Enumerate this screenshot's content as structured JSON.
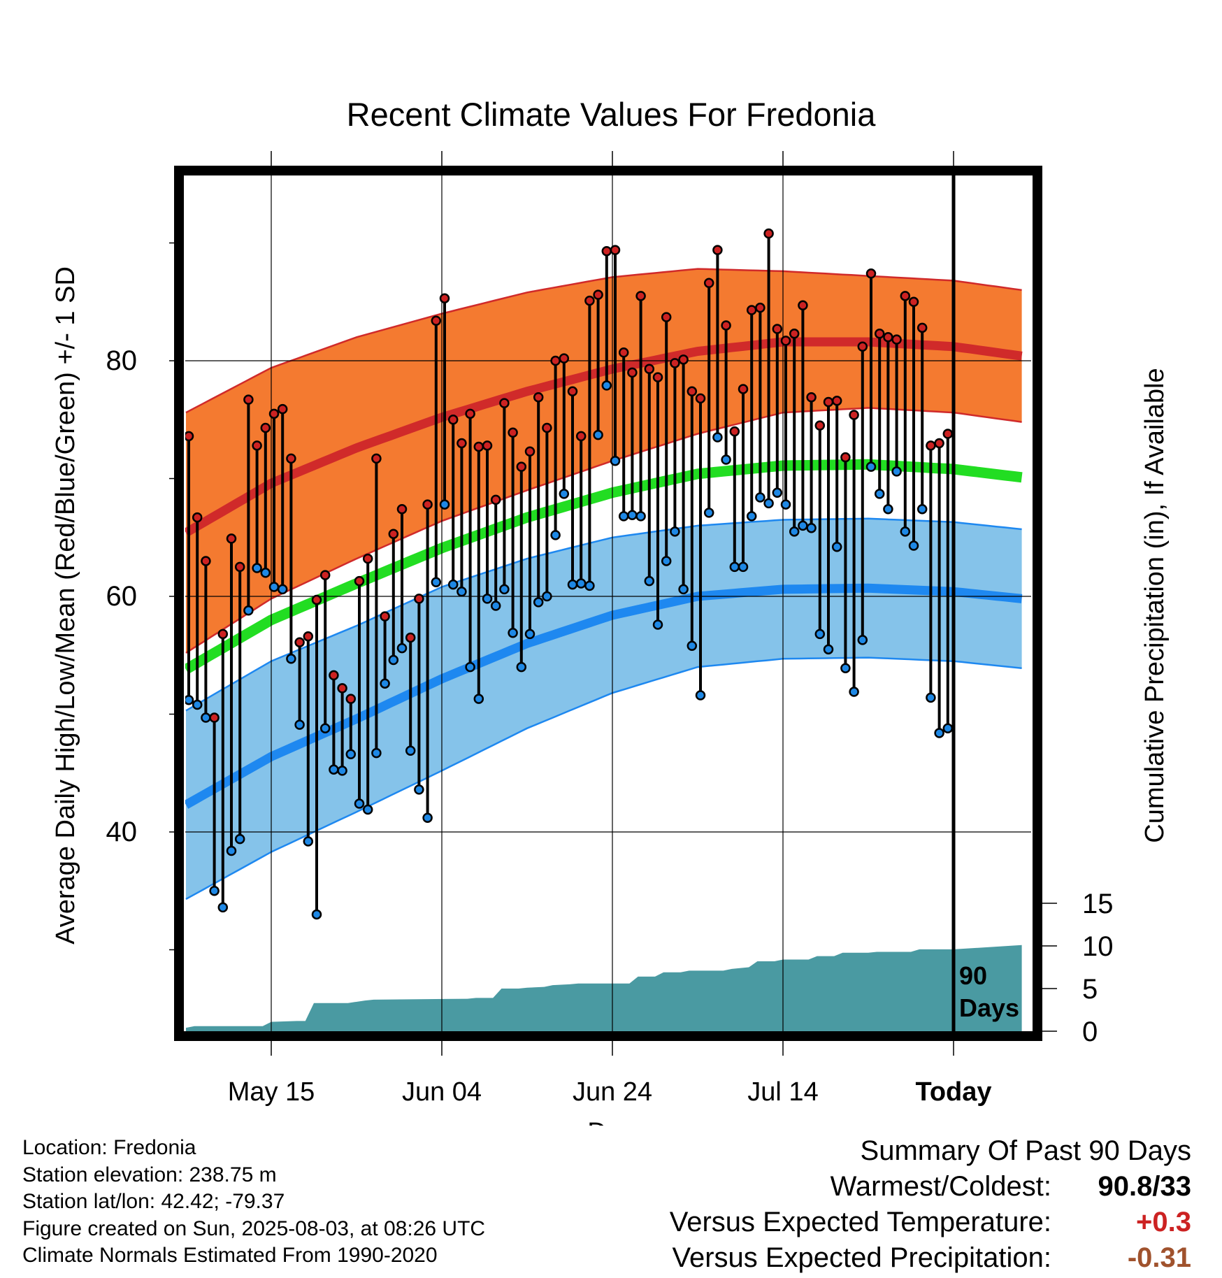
{
  "chart_data": {
    "type": "line",
    "title": "Recent Climate Values For Fredonia",
    "xlabel": "Day",
    "ylabel": "Average Daily High/Low/Mean (Red/Blue/Green) +/- 1 SD",
    "y2label": "Cumulative Precipitation (in), If Available",
    "ylim": [
      23,
      95
    ],
    "y2lim": [
      0,
      28
    ],
    "x_range_days": [
      -90,
      8
    ],
    "x_ticks": [
      {
        "day": -80,
        "label": "May 15"
      },
      {
        "day": -60,
        "label": "Jun 04"
      },
      {
        "day": -40,
        "label": "Jun 24"
      },
      {
        "day": -20,
        "label": "Jul 14"
      },
      {
        "day": 0,
        "label": "Today"
      }
    ],
    "y_ticks": [
      {
        "value": 40,
        "label": "40"
      },
      {
        "value": 60,
        "label": "60"
      },
      {
        "value": 80,
        "label": "80"
      }
    ],
    "y_minor_ticks": [
      30,
      50,
      70,
      90
    ],
    "y2_ticks": [
      {
        "value": 0,
        "label": "0"
      },
      {
        "value": 5,
        "label": "5"
      },
      {
        "value": 10,
        "label": "10"
      },
      {
        "value": 15,
        "label": "15"
      }
    ],
    "today_label": [
      "90",
      "Days"
    ],
    "normal_high": {
      "days": [
        -90,
        -80,
        -70,
        -60,
        -50,
        -40,
        -30,
        -20,
        -10,
        0,
        8
      ],
      "mean": [
        65.4,
        69.6,
        72.6,
        75.2,
        77.4,
        79.3,
        80.8,
        81.6,
        81.6,
        81.2,
        80.4
      ],
      "sd": [
        10.2,
        9.8,
        9.4,
        8.8,
        8.4,
        7.8,
        7.0,
        6.0,
        5.6,
        5.6,
        5.6
      ]
    },
    "normal_low": {
      "days": [
        -90,
        -80,
        -70,
        -60,
        -50,
        -40,
        -30,
        -20,
        -10,
        0,
        8
      ],
      "mean": [
        42.3,
        46.4,
        49.6,
        53.0,
        56.0,
        58.4,
        60.0,
        60.6,
        60.7,
        60.4,
        59.8
      ],
      "sd": [
        8.0,
        8.1,
        7.9,
        7.8,
        7.2,
        6.6,
        6.0,
        5.9,
        5.9,
        5.9,
        5.9
      ]
    },
    "normal_mean": {
      "days": [
        -90,
        -80,
        -70,
        -60,
        -50,
        -40,
        -30,
        -20,
        -10,
        0,
        8
      ],
      "values": [
        53.8,
        58.0,
        61.1,
        64.1,
        66.7,
        68.8,
        70.4,
        71.1,
        71.2,
        70.8,
        70.1
      ]
    },
    "series": [
      {
        "name": "High",
        "color": "#cc2222",
        "values": [
          73.6,
          66.7,
          63.0,
          49.7,
          56.8,
          64.9,
          62.5,
          76.7,
          72.8,
          74.3,
          75.5,
          75.9,
          71.7,
          56.1,
          56.6,
          59.7,
          61.8,
          53.3,
          52.2,
          51.3,
          61.3,
          63.2,
          71.7,
          58.3,
          65.3,
          67.4,
          56.5,
          59.8,
          67.8,
          83.4,
          85.3,
          75.0,
          73.0,
          75.5,
          72.7,
          72.8,
          68.2,
          76.4,
          73.9,
          71.0,
          72.3,
          76.9,
          74.3,
          80.0,
          80.2,
          77.4,
          73.6,
          85.1,
          85.6,
          89.3,
          89.4,
          80.7,
          79.0,
          85.5,
          79.3,
          78.6,
          83.7,
          79.8,
          80.1,
          77.4,
          76.8,
          86.6,
          89.4,
          83.0,
          74.0,
          77.6,
          84.3,
          84.5,
          90.8,
          82.7,
          81.7,
          82.3,
          84.7,
          76.9,
          74.5,
          76.5,
          76.6,
          71.8,
          75.4,
          81.2,
          87.4,
          82.3,
          82.0,
          81.8,
          85.5,
          85.0,
          82.8,
          72.8,
          73.0,
          73.8
        ]
      },
      {
        "name": "Low",
        "color": "#1e88e5",
        "values": [
          51.2,
          50.8,
          49.7,
          35.0,
          33.6,
          38.4,
          39.4,
          58.8,
          62.4,
          62.0,
          60.8,
          60.6,
          54.7,
          49.1,
          39.2,
          33.0,
          48.8,
          45.3,
          45.2,
          46.6,
          42.4,
          41.9,
          46.7,
          52.6,
          54.6,
          55.6,
          46.9,
          43.6,
          41.2,
          61.2,
          67.8,
          61.0,
          60.4,
          54.0,
          51.3,
          59.8,
          59.2,
          60.6,
          56.9,
          54.0,
          56.8,
          59.5,
          60.0,
          65.2,
          68.7,
          61.0,
          61.1,
          60.9,
          73.7,
          77.9,
          71.5,
          66.8,
          66.9,
          66.8,
          61.3,
          57.6,
          63.0,
          65.5,
          60.6,
          55.8,
          51.6,
          67.1,
          73.5,
          71.6,
          62.5,
          62.5,
          66.8,
          68.4,
          67.9,
          68.8,
          67.8,
          65.5,
          66.0,
          65.8,
          56.8,
          55.5,
          64.2,
          53.9,
          51.9,
          56.3,
          71.0,
          68.7,
          67.4,
          70.6,
          65.5,
          64.3,
          67.4,
          51.4,
          48.4,
          48.8
        ]
      }
    ],
    "precipitation": {
      "days": [
        -90,
        -89,
        -81,
        -80,
        -77,
        -76,
        -75,
        -71,
        -69,
        -68,
        -57,
        -56,
        -54,
        -53,
        -51,
        -50,
        -48,
        -47,
        -45,
        -44,
        -38,
        -37,
        -35,
        -34,
        -32,
        -31,
        -27,
        -26,
        -24,
        -23,
        -21,
        -20,
        -17,
        -16,
        -14,
        -13,
        -10,
        -9,
        -5,
        -4,
        0,
        8
      ],
      "cumulative": [
        0.4,
        0.6,
        0.6,
        1.1,
        1.2,
        1.2,
        3.3,
        3.3,
        3.6,
        3.7,
        3.8,
        3.9,
        3.9,
        5.0,
        5.0,
        5.1,
        5.2,
        5.4,
        5.5,
        5.6,
        5.6,
        6.4,
        6.4,
        6.9,
        6.9,
        7.1,
        7.1,
        7.3,
        7.5,
        8.2,
        8.2,
        8.4,
        8.4,
        8.8,
        8.8,
        9.2,
        9.2,
        9.3,
        9.3,
        9.6,
        9.6,
        10.1
      ]
    }
  },
  "info": {
    "location": "Location: Fredonia",
    "elevation": "Station elevation: 238.75 m",
    "latlon": "Station lat/lon: 42.42; -79.37",
    "created": "Figure created on Sun, 2025-08-03, at 08:26 UTC",
    "normals": "Climate Normals Estimated From 1990-2020"
  },
  "summary": {
    "heading": "Summary Of Past 90 Days",
    "warm_cold_label": "Warmest/Coldest:",
    "warm_cold_value": "90.8/33",
    "temp_label": "Versus Expected Temperature:",
    "temp_value": "+0.3",
    "temp_color": "#cc2222",
    "precip_label": "Versus Expected Precipitation:",
    "precip_value": "-0.31",
    "precip_color": "#a0522d"
  },
  "colors": {
    "high_band": "#f47a30",
    "high_line": "#d02a2a",
    "low_band": "#85c3ea",
    "low_line": "#1e88f0",
    "mean_line": "#22dd22",
    "precip_fill": "#4a9aa2"
  }
}
